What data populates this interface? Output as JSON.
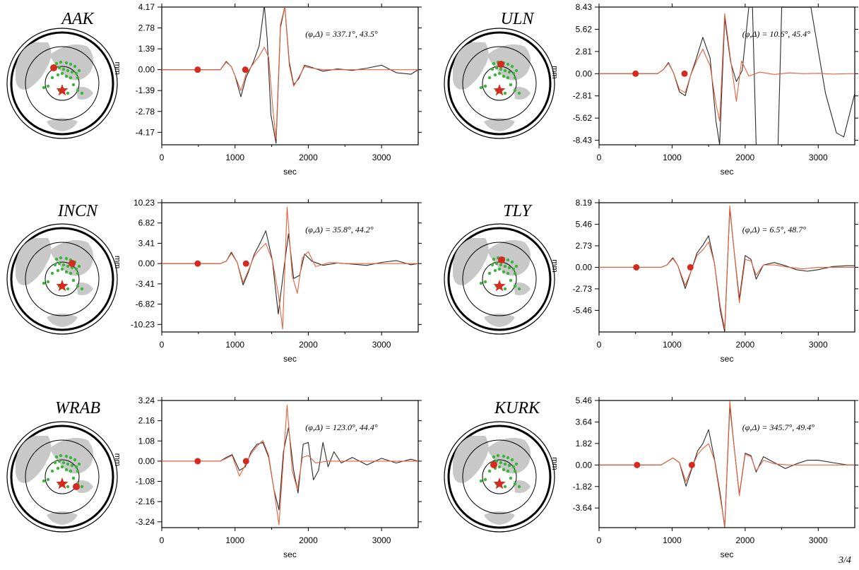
{
  "page_number": "3/4",
  "colors": {
    "observed": "#2b2b2b",
    "synthetic": "#e8603c",
    "marker": "#d42a20",
    "station": "#3cb43c",
    "land": "#c8c8c8"
  },
  "chart_data": [
    {
      "type": "line",
      "station": "AAK",
      "annotation": "(φ,Δ) = 337.1°, 43.5°",
      "xlabel": "sec",
      "ylabel": "mm",
      "xlim": [
        0,
        3500
      ],
      "ylim": [
        -5.0,
        4.17
      ],
      "xticks": [
        "0",
        "1000",
        "2000",
        "3000"
      ],
      "yticks": [
        "4.17",
        "2.78",
        "1.39",
        "0.00",
        "-1.39",
        "-2.78",
        "-4.17"
      ],
      "onsets": [
        490,
        1140
      ],
      "series": [
        {
          "role": "observed",
          "x": [
            0,
            800,
            880,
            950,
            1000,
            1080,
            1150,
            1250,
            1330,
            1400,
            1440,
            1490,
            1560,
            1620,
            1680,
            1740,
            1800,
            1870,
            1950,
            2050,
            2200,
            2400,
            2600,
            2800,
            3000,
            3200,
            3400,
            3500
          ],
          "y": [
            0,
            0,
            0.55,
            0.2,
            -0.4,
            -1.8,
            -0.5,
            0.5,
            1.6,
            4.3,
            2.0,
            -3.0,
            -4.9,
            2.8,
            4.2,
            0.5,
            -1.0,
            -0.6,
            0.3,
            0.15,
            -0.1,
            0.05,
            -0.05,
            0.1,
            0.3,
            -0.2,
            -0.3,
            0
          ]
        },
        {
          "role": "synthetic",
          "x": [
            0,
            800,
            880,
            950,
            1000,
            1080,
            1150,
            1250,
            1330,
            1400,
            1460,
            1520,
            1560,
            1620,
            1680,
            1740,
            1800,
            1870,
            1950,
            2050,
            2200,
            2400,
            2600,
            2800,
            3000,
            3200,
            3400,
            3500
          ],
          "y": [
            0,
            0,
            0.5,
            0.2,
            -0.4,
            -1.4,
            -0.3,
            0.4,
            0.9,
            1.5,
            0.8,
            -2.8,
            -4.6,
            3.0,
            4.2,
            0.3,
            -1.1,
            -0.5,
            0.2,
            0.1,
            0,
            0,
            0,
            0,
            0,
            0,
            0,
            0
          ]
        }
      ]
    },
    {
      "type": "line",
      "station": "ULN",
      "annotation": "(φ,Δ) = 10.6°, 45.4°",
      "xlabel": "sec",
      "ylabel": "mm",
      "xlim": [
        0,
        3500
      ],
      "ylim": [
        -9.0,
        8.43
      ],
      "xticks": [
        "0",
        "1000",
        "2000",
        "3000"
      ],
      "yticks": [
        "8.43",
        "5.62",
        "2.81",
        "0.00",
        "-2.81",
        "-5.62",
        "-8.43"
      ],
      "onsets": [
        500,
        1170
      ],
      "series": [
        {
          "role": "observed",
          "x": [
            0,
            800,
            880,
            950,
            1020,
            1100,
            1180,
            1250,
            1330,
            1420,
            1520,
            1600,
            1650,
            1720,
            1800,
            1880,
            1960,
            2050,
            2100,
            2150,
            2300,
            2450,
            2500,
            2700,
            2900,
            3100,
            3250,
            3350,
            3500
          ],
          "y": [
            0,
            0,
            0.5,
            1.4,
            0.1,
            -2.3,
            -2.8,
            -0.3,
            1.9,
            4.6,
            2.0,
            -6.0,
            -9.0,
            7.0,
            1.5,
            -1.0,
            0.4,
            8.4,
            8.4,
            -9.0,
            -9.0,
            -9.0,
            8.4,
            8.4,
            8.4,
            -2.5,
            -7.5,
            -8.0,
            -2.5
          ]
        },
        {
          "role": "synthetic",
          "x": [
            0,
            800,
            880,
            950,
            1020,
            1100,
            1180,
            1250,
            1330,
            1420,
            1520,
            1600,
            1650,
            1720,
            1800,
            1880,
            1950,
            2050,
            2200,
            2400,
            2600,
            2800,
            3000,
            3200,
            3400,
            3500
          ],
          "y": [
            0,
            0,
            0.5,
            1.3,
            0.1,
            -2.0,
            -2.4,
            -0.3,
            1.5,
            3.1,
            1.0,
            -3.8,
            -6.0,
            7.6,
            1.8,
            -3.5,
            1.6,
            -0.3,
            0.2,
            -0.1,
            0.1,
            0,
            0.05,
            -0.05,
            0,
            0
          ]
        }
      ]
    },
    {
      "type": "line",
      "station": "INCN",
      "annotation": "(φ,Δ) = 35.8°, 44.2°",
      "xlabel": "sec",
      "ylabel": "mm",
      "xlim": [
        0,
        3500
      ],
      "ylim": [
        -11.5,
        10.23
      ],
      "xticks": [
        "0",
        "1000",
        "2000",
        "3000"
      ],
      "yticks": [
        "10.23",
        "6.82",
        "3.41",
        "0.00",
        "-3.41",
        "-6.82",
        "-10.23"
      ],
      "onsets": [
        490,
        1150
      ],
      "series": [
        {
          "role": "observed",
          "x": [
            0,
            800,
            880,
            950,
            1030,
            1110,
            1180,
            1260,
            1340,
            1420,
            1510,
            1590,
            1660,
            1730,
            1800,
            1880,
            1950,
            2050,
            2200,
            2400,
            2600,
            2800,
            3000,
            3200,
            3400,
            3500
          ],
          "y": [
            0,
            0,
            0.4,
            1.9,
            0.2,
            -3.6,
            -1.5,
            1.5,
            3.4,
            5.5,
            0.5,
            -8.5,
            -1.5,
            5.0,
            -2.5,
            -2.0,
            1.6,
            0.4,
            -0.3,
            0.1,
            -0.1,
            -0.3,
            0.2,
            0.5,
            -0.2,
            0
          ]
        },
        {
          "role": "synthetic",
          "x": [
            0,
            800,
            880,
            950,
            1030,
            1110,
            1180,
            1260,
            1340,
            1420,
            1510,
            1590,
            1650,
            1710,
            1780,
            1850,
            1920,
            2000,
            2100,
            2300,
            2500,
            2700,
            2900,
            3100,
            3300,
            3500
          ],
          "y": [
            0,
            0,
            0.4,
            1.7,
            0.2,
            -3.2,
            -1.2,
            1.2,
            2.4,
            3.4,
            0.5,
            -5.0,
            -11.0,
            9.5,
            -2.0,
            -5.0,
            1.0,
            2.0,
            -0.5,
            0.2,
            0,
            0,
            0,
            0,
            0,
            0
          ]
        }
      ]
    },
    {
      "type": "line",
      "station": "TLY",
      "annotation": "(φ,Δ) = 6.5°, 48.7°",
      "xlabel": "sec",
      "ylabel": "mm",
      "xlim": [
        0,
        3500
      ],
      "ylim": [
        -8.2,
        8.19
      ],
      "xticks": [
        "0",
        "1000",
        "2000",
        "3000"
      ],
      "yticks": [
        "8.19",
        "5.46",
        "2.73",
        "0.00",
        "-2.73",
        "-5.46"
      ],
      "onsets": [
        510,
        1250
      ],
      "series": [
        {
          "role": "observed",
          "x": [
            0,
            850,
            930,
            1010,
            1080,
            1180,
            1260,
            1340,
            1420,
            1500,
            1580,
            1660,
            1720,
            1790,
            1850,
            1920,
            2000,
            2080,
            2150,
            2250,
            2400,
            2550,
            2700,
            2850,
            3000,
            3200,
            3400,
            3500
          ],
          "y": [
            0,
            0,
            0.3,
            1.2,
            0.2,
            -2.7,
            -0.5,
            1.8,
            2.8,
            4.0,
            0.5,
            -5.5,
            -8.2,
            7.5,
            2.0,
            -4.0,
            1.5,
            1.0,
            -1.5,
            0.3,
            0.6,
            0.2,
            -0.3,
            -0.5,
            -0.3,
            0.1,
            0.2,
            0.2
          ]
        },
        {
          "role": "synthetic",
          "x": [
            0,
            850,
            930,
            1010,
            1080,
            1180,
            1260,
            1340,
            1420,
            1500,
            1580,
            1660,
            1720,
            1790,
            1850,
            1920,
            2000,
            2080,
            2150,
            2250,
            2400,
            2600,
            2800,
            3000,
            3200,
            3500
          ],
          "y": [
            0,
            0,
            0.3,
            1.1,
            0.2,
            -2.3,
            -0.5,
            1.5,
            2.2,
            3.2,
            0.5,
            -5.0,
            -7.8,
            7.8,
            2.0,
            -4.5,
            1.0,
            0.8,
            -1.0,
            0.3,
            0.3,
            0,
            -0.2,
            0,
            0,
            0
          ]
        }
      ]
    },
    {
      "type": "line",
      "station": "WRAB",
      "annotation": "(φ,Δ) = 123.0°, 44.4°",
      "xlabel": "sec",
      "ylabel": "mm",
      "xlim": [
        0,
        3500
      ],
      "ylim": [
        -3.55,
        3.24
      ],
      "xticks": [
        "0",
        "1000",
        "2000",
        "3000"
      ],
      "yticks": [
        "3.24",
        "2.16",
        "1.08",
        "0.00",
        "-1.08",
        "-2.16",
        "-3.24"
      ],
      "onsets": [
        490,
        1150
      ],
      "series": [
        {
          "role": "observed",
          "x": [
            0,
            800,
            880,
            960,
            1060,
            1140,
            1220,
            1300,
            1380,
            1460,
            1530,
            1600,
            1660,
            1730,
            1800,
            1860,
            1930,
            2000,
            2070,
            2140,
            2200,
            2270,
            2350,
            2450,
            2600,
            2800,
            3000,
            3200,
            3400,
            3500
          ],
          "y": [
            0,
            0,
            0.2,
            0.35,
            -0.5,
            -0.3,
            0.5,
            0.9,
            1.0,
            0.2,
            -1.5,
            -2.6,
            0.5,
            1.8,
            -0.5,
            -1.7,
            0.9,
            1.0,
            -1.0,
            -0.5,
            1.0,
            -0.3,
            0.5,
            -0.1,
            0.2,
            -0.2,
            0.15,
            -0.1,
            0.1,
            0
          ]
        },
        {
          "role": "synthetic",
          "x": [
            0,
            800,
            880,
            960,
            1060,
            1140,
            1220,
            1300,
            1380,
            1460,
            1530,
            1600,
            1650,
            1710,
            1780,
            1850,
            1920,
            2000,
            2100,
            2250,
            2400,
            2600,
            2800,
            3000,
            3200,
            3500
          ],
          "y": [
            0,
            0,
            0.15,
            0.3,
            -0.8,
            -0.2,
            0.4,
            0.8,
            1.1,
            0.3,
            -1.5,
            -3.4,
            -0.5,
            3.0,
            -0.5,
            -1.5,
            0.2,
            0.3,
            -0.1,
            0,
            0,
            0,
            0,
            0,
            0,
            0
          ]
        }
      ]
    },
    {
      "type": "line",
      "station": "KURK",
      "annotation": "(φ,Δ) = 345.7°, 49.4°",
      "xlabel": "sec",
      "ylabel": "mm",
      "xlim": [
        0,
        3500
      ],
      "ylim": [
        -5.3,
        5.46
      ],
      "xticks": [
        "0",
        "1000",
        "2000",
        "3000"
      ],
      "yticks": [
        "5.46",
        "3.64",
        "1.82",
        "0.00",
        "-1.82",
        "-3.64"
      ],
      "onsets": [
        520,
        1270
      ],
      "series": [
        {
          "role": "observed",
          "x": [
            0,
            850,
            930,
            1010,
            1100,
            1190,
            1270,
            1350,
            1420,
            1500,
            1580,
            1660,
            1720,
            1790,
            1850,
            1920,
            2000,
            2080,
            2150,
            2250,
            2400,
            2550,
            2700,
            2850,
            3000,
            3200,
            3400,
            3500
          ],
          "y": [
            0,
            0,
            0.3,
            0.6,
            0.2,
            -1.8,
            -0.3,
            1.2,
            1.8,
            3.0,
            0.5,
            -2.5,
            -5.3,
            5.0,
            1.5,
            -2.5,
            1.0,
            0.8,
            -0.6,
            0.7,
            0.2,
            -0.3,
            0.1,
            0.4,
            0.4,
            0.2,
            0,
            0
          ]
        },
        {
          "role": "synthetic",
          "x": [
            0,
            850,
            930,
            1010,
            1100,
            1190,
            1270,
            1350,
            1420,
            1500,
            1580,
            1660,
            1720,
            1790,
            1850,
            1920,
            2000,
            2080,
            2150,
            2250,
            2400,
            2600,
            2800,
            3000,
            3200,
            3500
          ],
          "y": [
            0,
            0,
            0.3,
            0.6,
            0.2,
            -1.4,
            -0.2,
            0.9,
            1.4,
            1.8,
            0.4,
            -2.8,
            -5.2,
            5.4,
            1.5,
            -2.6,
            0.9,
            0.7,
            -0.5,
            0.4,
            0.1,
            0,
            0,
            0,
            0,
            0
          ]
        }
      ]
    }
  ]
}
